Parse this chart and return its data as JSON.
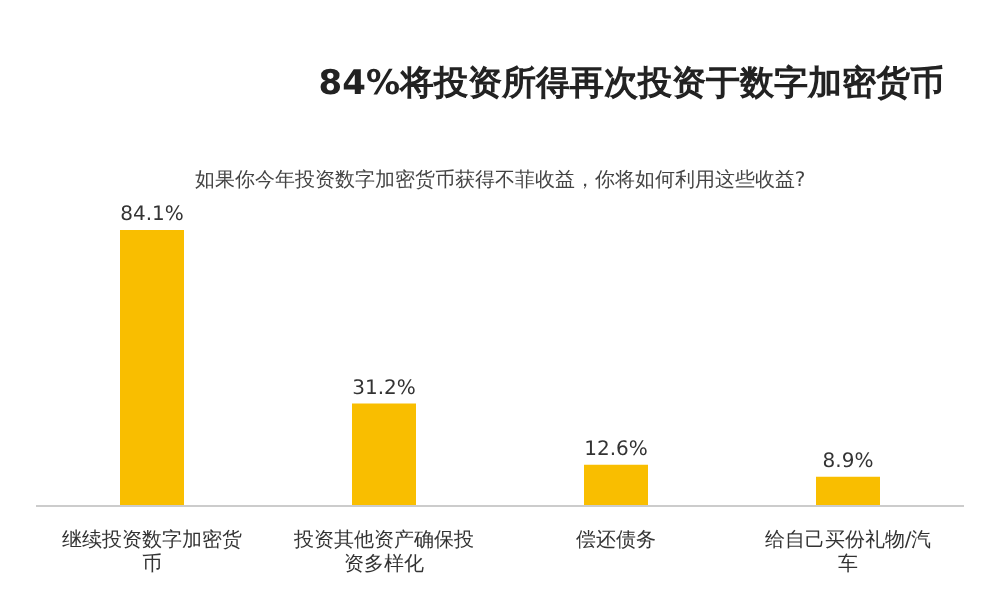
{
  "chart_data": {
    "type": "bar",
    "title": "84%将投资所得再次投资于数字加密货币",
    "subtitle": "如果你今年投资数字加密货币获得不菲收益，你将如何利用这些收益?",
    "categories": [
      "继续投资数字加密货币",
      "投资其他资产确保投资多样化",
      "偿还债务",
      "给自己买份礼物/汽车"
    ],
    "values": [
      84.1,
      31.2,
      12.6,
      8.9
    ],
    "color": "#f9be00",
    "value_labels": [
      "84.1%",
      "31.2%",
      "12.6%",
      "8.9%"
    ]
  }
}
